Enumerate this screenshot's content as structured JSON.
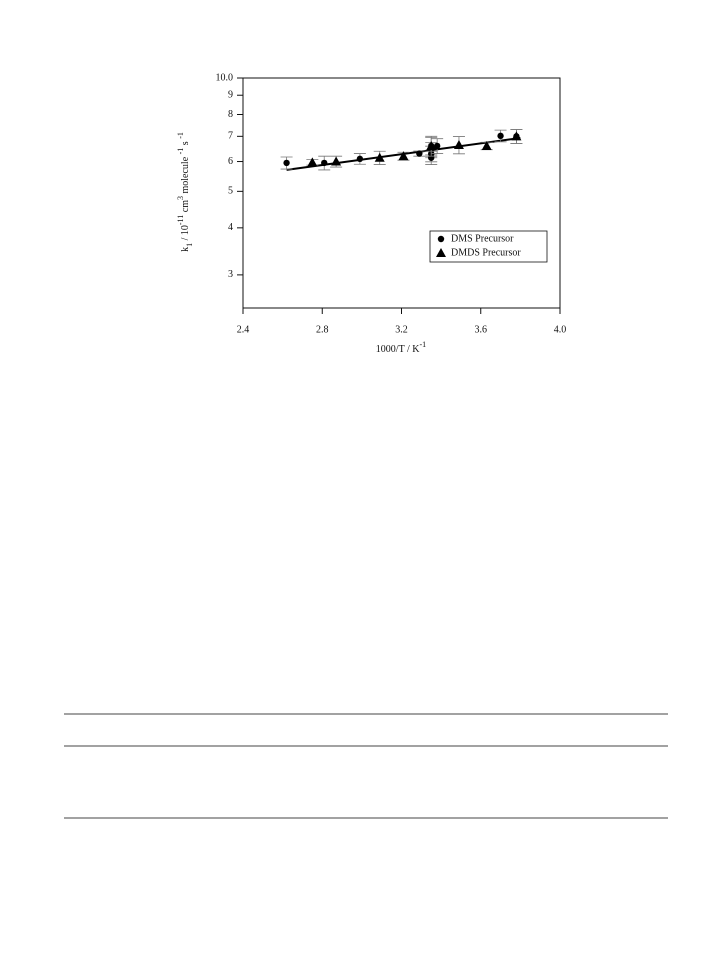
{
  "chart_data": {
    "type": "scatter",
    "xlabel": [
      "1000/T / K",
      "-1"
    ],
    "ylabel": [
      "k",
      "1",
      " / 10",
      "-11",
      " cm",
      "3",
      " molecule ",
      "-1",
      " s ",
      "-1"
    ],
    "xlim": [
      2.4,
      4.0
    ],
    "xticks": [
      2.4,
      2.8,
      3.2,
      3.6,
      {
        "value": 4.0,
        "label": "4.0"
      }
    ],
    "ylim": [
      2.45,
      10
    ],
    "yticks": [
      3,
      4,
      5,
      6,
      7,
      8,
      9,
      {
        "value": 10,
        "label": "10.0"
      }
    ],
    "log_y": true,
    "legend": "lower right",
    "series": [
      {
        "name": "DMS Precursor",
        "color": "#000000",
        "marker": "circle",
        "x": [
          2.62,
          2.81,
          2.99,
          3.29,
          3.35,
          3.35,
          3.35,
          3.35,
          3.38,
          3.7,
          3.78
        ],
        "values": [
          5.95,
          5.95,
          6.1,
          6.3,
          6.6,
          6.44,
          6.29,
          6.14,
          6.6,
          7.02,
          7.0
        ],
        "errors": [
          0.22,
          0.25,
          0.2,
          0.1,
          0.35,
          0.3,
          0.3,
          0.25,
          0.3,
          0.25,
          0.3
        ]
      },
      {
        "name": "DMDS Precursor",
        "color": "#000000",
        "marker": "triangle",
        "x": [
          2.75,
          2.87,
          3.09,
          3.21,
          3.35,
          3.49,
          3.63,
          3.78
        ],
        "values": [
          5.97,
          6.0,
          6.14,
          6.2,
          6.6,
          6.64,
          6.6,
          7.0
        ],
        "errors": [
          0.1,
          0.2,
          0.25,
          0.15,
          0.4,
          0.35,
          0.15,
          0.3
        ]
      }
    ],
    "fit_line": {
      "color": "#000000",
      "x": [
        2.62,
        3.8
      ],
      "values": [
        5.7,
        6.93
      ]
    }
  }
}
